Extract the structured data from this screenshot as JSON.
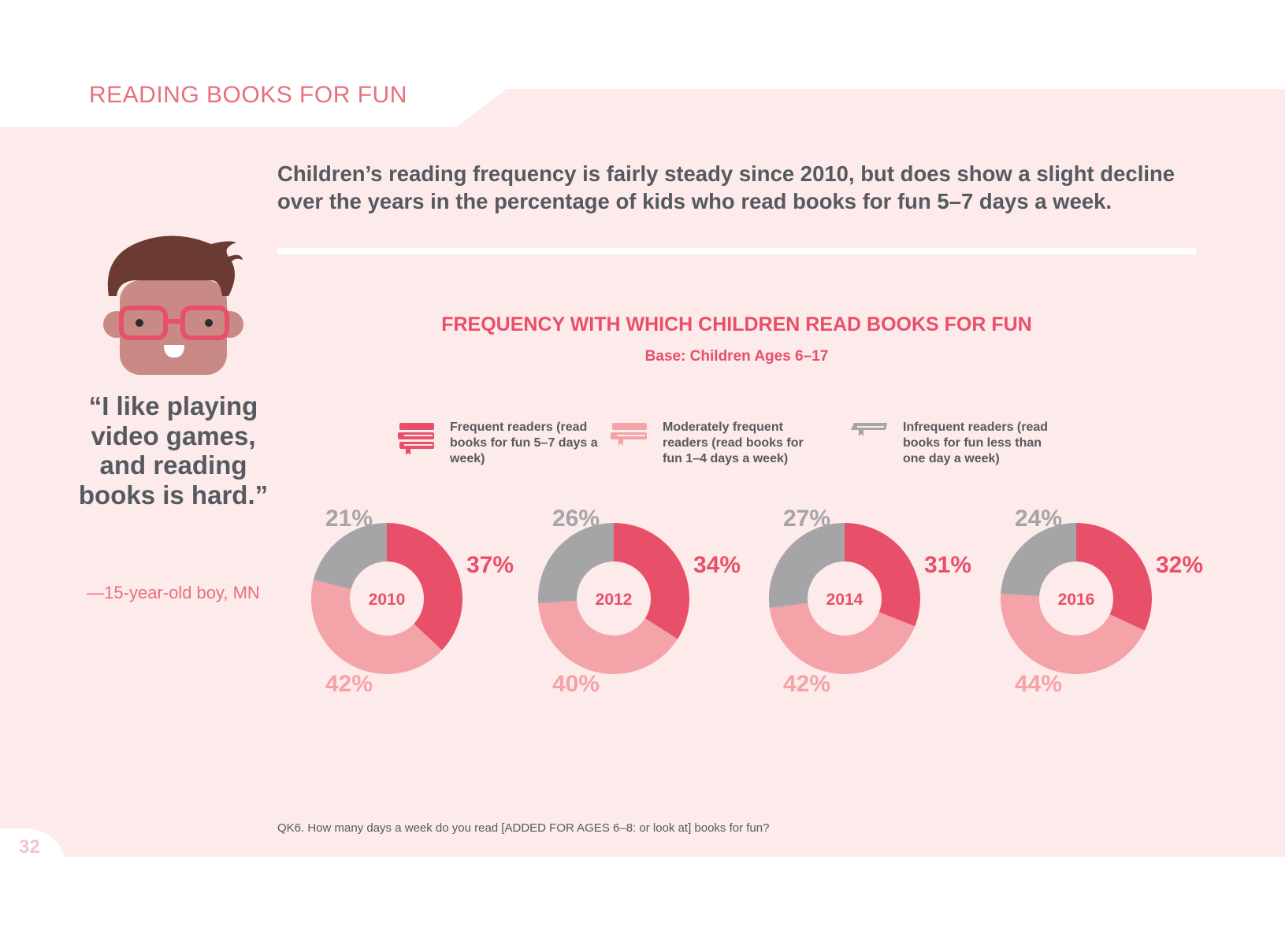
{
  "section_label": "READING BOOKS FOR FUN",
  "headline": "Children’s reading frequency is fairly steady since 2010, but does show a slight decline over the years in the percentage of kids who read books for fun 5–7 days a week.",
  "quote": {
    "text": "“I like playing video games, and reading books is hard.”",
    "attribution": "—15-year-old boy, MN"
  },
  "legend": [
    {
      "label": "Frequent readers (read books for fun 5–7 days a week)",
      "icon": "book-stack-icon",
      "color": "#e8506a"
    },
    {
      "label": "Moderately frequent readers (read books for fun 1–4 days a week)",
      "icon": "book-stack-icon",
      "color": "#f4a3a8"
    },
    {
      "label": "Infrequent readers (read books for fun less than one day a week)",
      "icon": "book-icon",
      "color": "#a5a5a7"
    }
  ],
  "colors": {
    "frequent": "#e8506a",
    "moderate": "#f4a3a8",
    "infrequent": "#a5a5a7",
    "background": "#fdeaea",
    "accent": "#e8707e",
    "text": "#555a60"
  },
  "chart_data": {
    "type": "pie",
    "title": "FREQUENCY WITH WHICH CHILDREN READ BOOKS FOR FUN",
    "subtitle": "Base: Children Ages 6–17",
    "categories": [
      "Frequent readers",
      "Moderately frequent readers",
      "Infrequent readers"
    ],
    "charts": [
      {
        "year": "2010",
        "values": [
          37,
          42,
          21
        ],
        "labels": [
          "37%",
          "42%",
          "21%"
        ]
      },
      {
        "year": "2012",
        "values": [
          34,
          40,
          26
        ],
        "labels": [
          "34%",
          "40%",
          "26%"
        ]
      },
      {
        "year": "2014",
        "values": [
          31,
          42,
          27
        ],
        "labels": [
          "31%",
          "42%",
          "27%"
        ]
      },
      {
        "year": "2016",
        "values": [
          32,
          44,
          24
        ],
        "labels": [
          "32%",
          "44%",
          "24%"
        ]
      }
    ]
  },
  "footnote": "QK6. How many days a week do you read [ADDED FOR AGES 6–8: or look at] books for fun?",
  "page_number": "32"
}
